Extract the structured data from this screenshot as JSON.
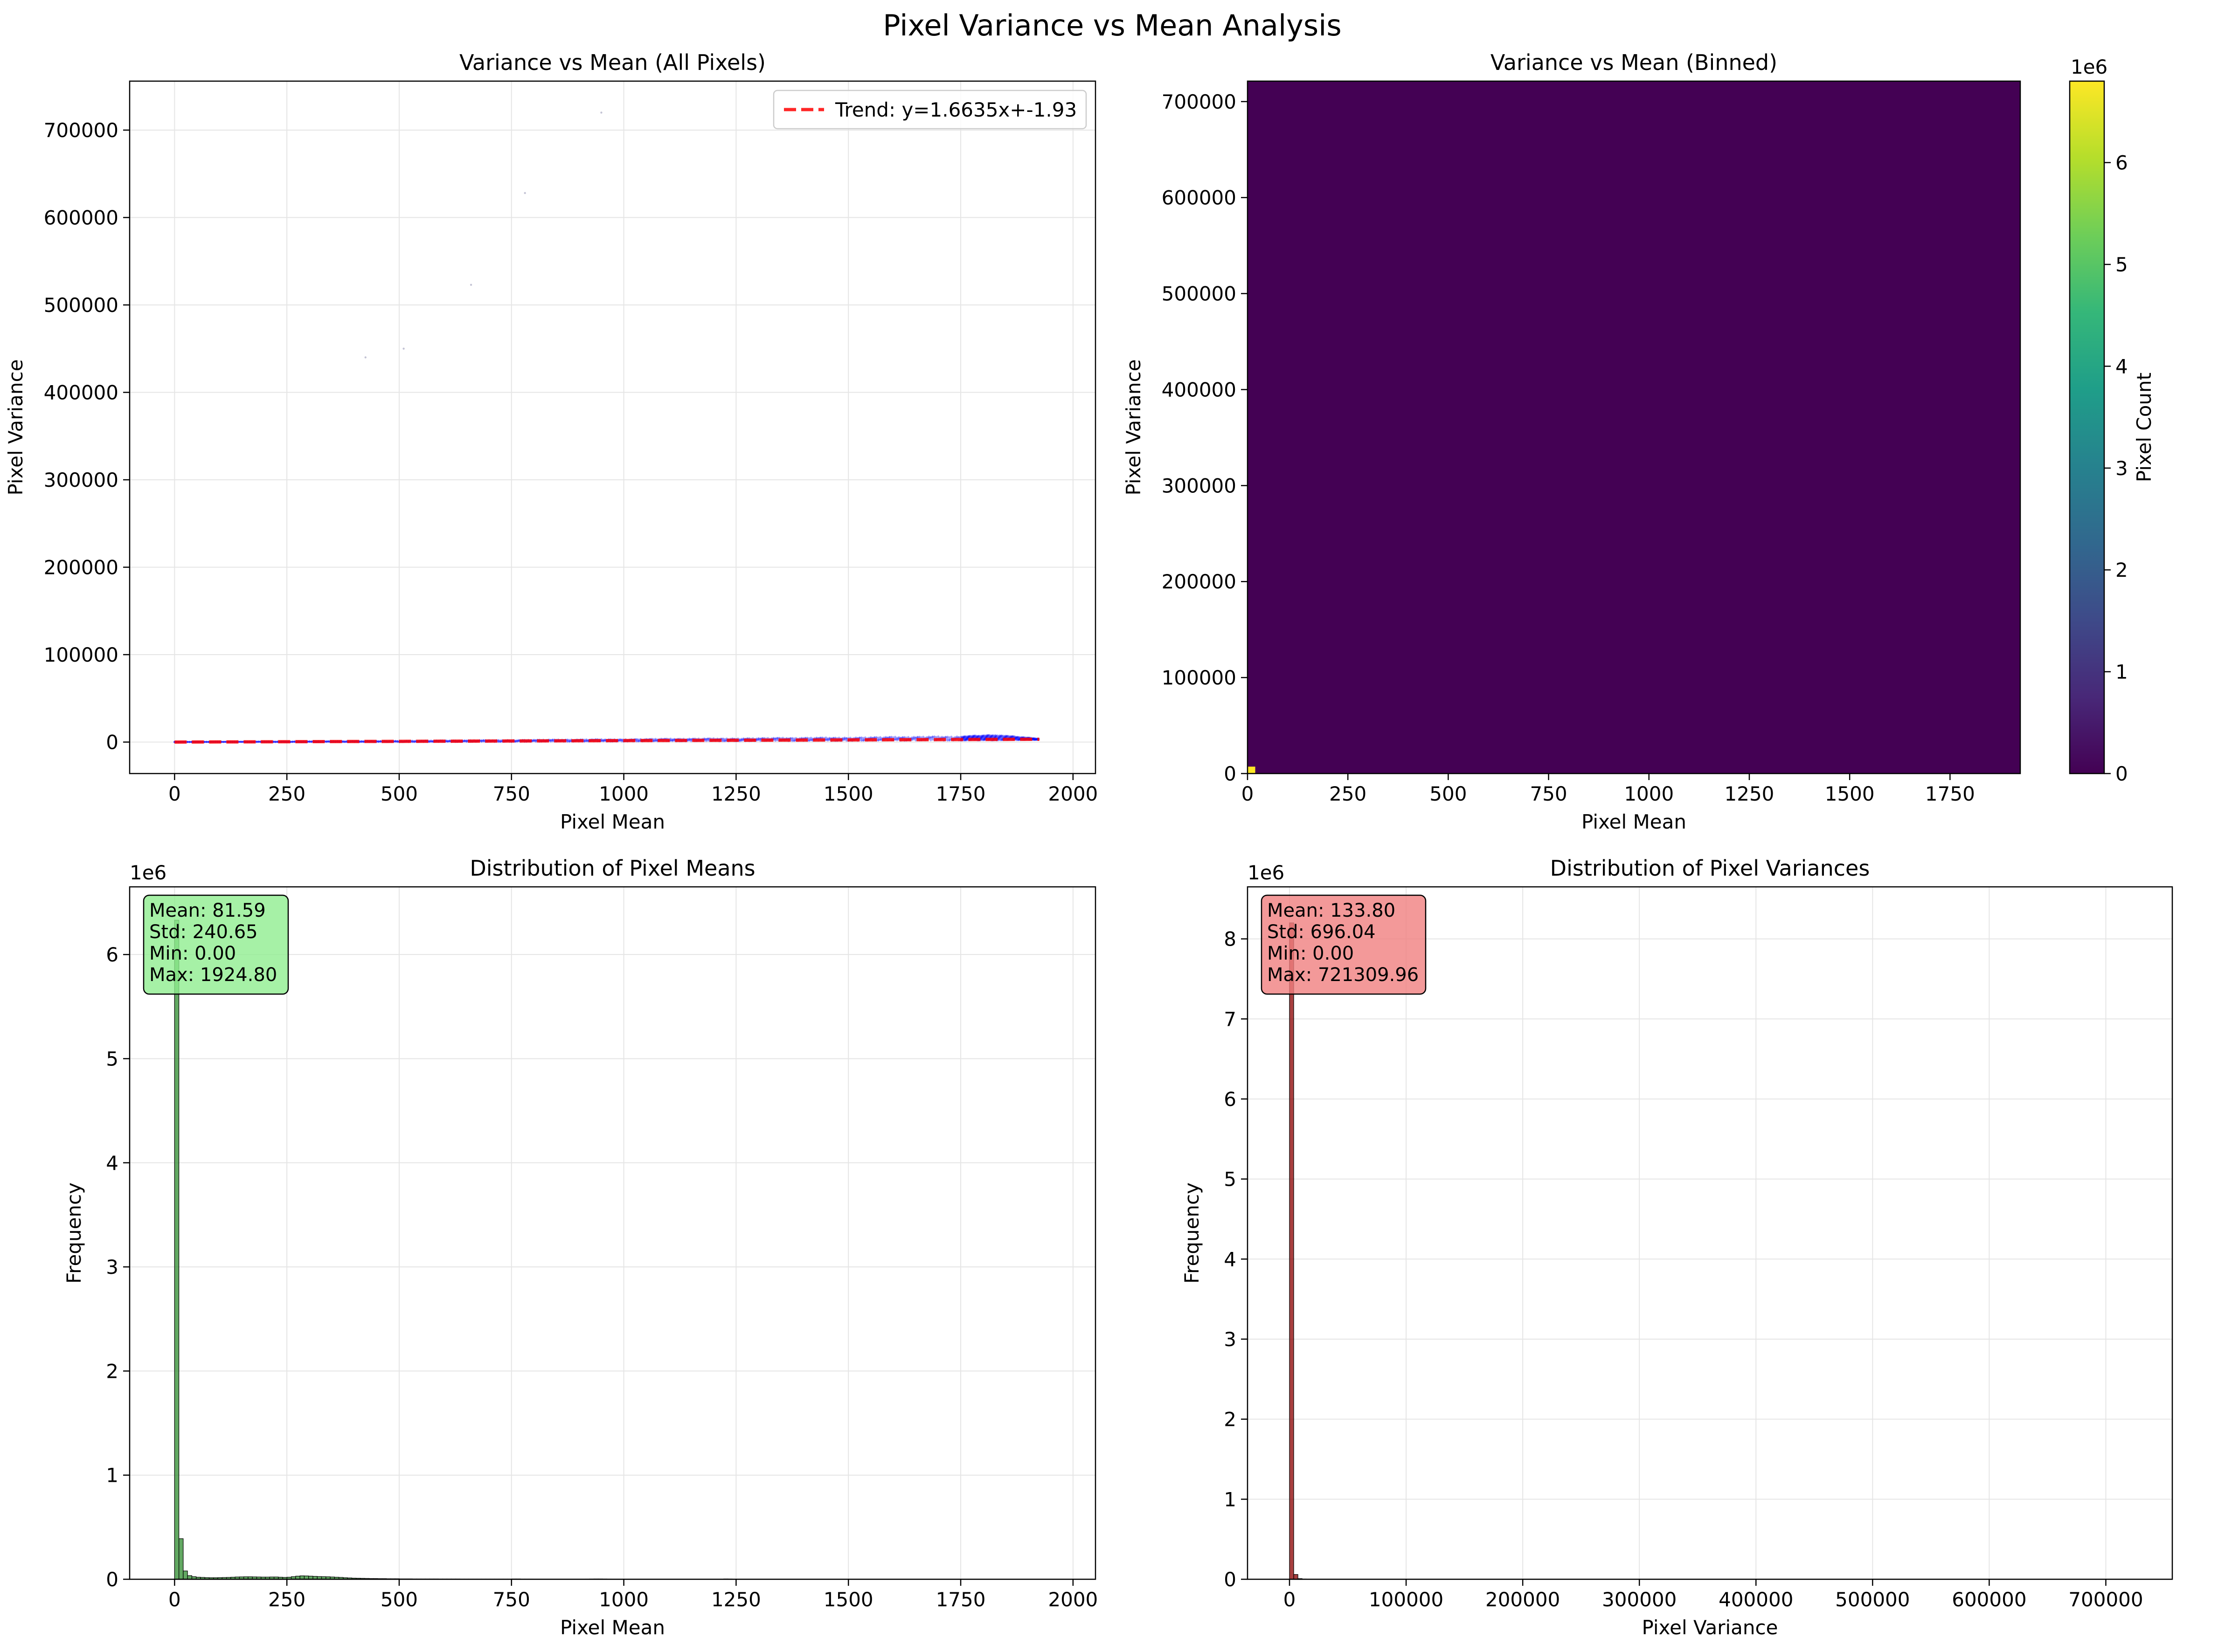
{
  "figure": {
    "title": "Pixel Variance vs Mean Analysis"
  },
  "colors": {
    "scatter": "#0000ff",
    "trend": "#ff0000",
    "hist_means_bar": "#2e8b2e",
    "hist_means_box": "#90ee90",
    "hist_var_bar": "#8b0000",
    "hist_var_box": "#f08080",
    "viridis_low": "#440154",
    "viridis_high": "#fde725",
    "grid": "#e5e5e5"
  },
  "chart_data": [
    {
      "id": "scatter",
      "type": "scatter",
      "title": "Variance vs Mean (All Pixels)",
      "xlabel": "Pixel Mean",
      "ylabel": "Pixel Variance",
      "xlim": [
        -100,
        2050
      ],
      "ylim": [
        -36000,
        756000
      ],
      "xticks": [
        0,
        250,
        500,
        750,
        1000,
        1250,
        1500,
        1750,
        2000
      ],
      "yticks": [
        0,
        100000,
        200000,
        300000,
        400000,
        500000,
        600000,
        700000
      ],
      "grid": true,
      "legend": {
        "placement": "top-right",
        "entries": [
          "Trend: y=1.6635x+-1.93"
        ]
      },
      "trend": {
        "slope": 1.6635,
        "intercept": -1.93,
        "x_range": [
          0,
          1925
        ]
      },
      "scatter_band": [
        {
          "x": 0,
          "ylo": 0,
          "yhi": 200
        },
        {
          "x": 250,
          "ylo": 0,
          "yhi": 700
        },
        {
          "x": 500,
          "ylo": 0,
          "yhi": 1500
        },
        {
          "x": 750,
          "ylo": 200,
          "yhi": 2500
        },
        {
          "x": 1000,
          "ylo": 600,
          "yhi": 3500
        },
        {
          "x": 1250,
          "ylo": 1000,
          "yhi": 4500
        },
        {
          "x": 1500,
          "ylo": 1400,
          "yhi": 5500
        },
        {
          "x": 1750,
          "ylo": 1800,
          "yhi": 6800
        },
        {
          "x": 1830,
          "ylo": 2000,
          "yhi": 8500
        },
        {
          "x": 1925,
          "ylo": 2500,
          "yhi": 4000
        }
      ],
      "outliers": [
        {
          "x": 425,
          "y": 440000
        },
        {
          "x": 510,
          "y": 450000
        },
        {
          "x": 660,
          "y": 523000
        },
        {
          "x": 780,
          "y": 628000
        },
        {
          "x": 950,
          "y": 720000
        }
      ]
    },
    {
      "id": "hist2d",
      "type": "heatmap",
      "title": "Variance vs Mean (Binned)",
      "xlabel": "Pixel Mean",
      "ylabel": "Pixel Variance",
      "xlim": [
        0,
        1925
      ],
      "ylim": [
        0,
        721310
      ],
      "xticks": [
        0,
        250,
        500,
        750,
        1000,
        1250,
        1500,
        1750
      ],
      "yticks": [
        0,
        100000,
        200000,
        300000,
        400000,
        500000,
        600000,
        700000
      ],
      "grid": false,
      "hot_cell": {
        "x0": 0,
        "x1": 19.25,
        "y0": 0,
        "y1": 7213,
        "count": 6800000
      },
      "colorbar": {
        "label": "Pixel Count",
        "min": 0,
        "max": 6800000,
        "ticks": [
          0,
          1,
          2,
          3,
          4,
          5,
          6
        ],
        "multiplier": "1e6"
      }
    },
    {
      "id": "hist_means",
      "type": "bar",
      "title": "Distribution of Pixel Means",
      "xlabel": "Pixel Mean",
      "ylabel": "Frequency",
      "xlim": [
        -100,
        2050
      ],
      "ylim": [
        0,
        6650000
      ],
      "xticks": [
        0,
        250,
        500,
        750,
        1000,
        1250,
        1500,
        1750,
        2000
      ],
      "yticks": [
        0,
        1,
        2,
        3,
        4,
        5,
        6
      ],
      "y_multiplier": "1e6",
      "grid": true,
      "bin_width": 9.624,
      "bins": [
        {
          "x": 0,
          "y": 6330000
        },
        {
          "x": 9.6,
          "y": 390000
        },
        {
          "x": 19.2,
          "y": 80000
        },
        {
          "x": 28.9,
          "y": 35000
        },
        {
          "x": 38.5,
          "y": 25000
        },
        {
          "x": 48.1,
          "y": 20000
        },
        {
          "x": 57.7,
          "y": 18000
        },
        {
          "x": 67.4,
          "y": 16000
        },
        {
          "x": 77.0,
          "y": 15000
        },
        {
          "x": 86.6,
          "y": 15000
        },
        {
          "x": 96.2,
          "y": 16000
        },
        {
          "x": 105.9,
          "y": 17000
        },
        {
          "x": 115.5,
          "y": 18000
        },
        {
          "x": 125.1,
          "y": 20000
        },
        {
          "x": 134.7,
          "y": 22000
        },
        {
          "x": 144.4,
          "y": 23000
        },
        {
          "x": 154.0,
          "y": 24000
        },
        {
          "x": 163.6,
          "y": 24000
        },
        {
          "x": 173.2,
          "y": 23000
        },
        {
          "x": 182.9,
          "y": 22000
        },
        {
          "x": 192.5,
          "y": 21000
        },
        {
          "x": 202.1,
          "y": 21000
        },
        {
          "x": 211.7,
          "y": 22000
        },
        {
          "x": 221.4,
          "y": 22000
        },
        {
          "x": 231.0,
          "y": 20000
        },
        {
          "x": 240.6,
          "y": 18000
        },
        {
          "x": 250.2,
          "y": 20000
        },
        {
          "x": 259.8,
          "y": 25000
        },
        {
          "x": 269.5,
          "y": 30000
        },
        {
          "x": 279.1,
          "y": 33000
        },
        {
          "x": 288.7,
          "y": 32000
        },
        {
          "x": 298.3,
          "y": 30000
        },
        {
          "x": 308.0,
          "y": 28000
        },
        {
          "x": 317.6,
          "y": 26000
        },
        {
          "x": 327.2,
          "y": 25000
        },
        {
          "x": 336.8,
          "y": 24000
        },
        {
          "x": 346.5,
          "y": 22000
        },
        {
          "x": 356.1,
          "y": 20000
        },
        {
          "x": 365.7,
          "y": 18000
        },
        {
          "x": 375.3,
          "y": 15000
        },
        {
          "x": 385.0,
          "y": 13000
        },
        {
          "x": 394.6,
          "y": 11000
        },
        {
          "x": 404.2,
          "y": 10000
        },
        {
          "x": 413.8,
          "y": 9000
        },
        {
          "x": 423.5,
          "y": 8000
        },
        {
          "x": 433.1,
          "y": 7000
        },
        {
          "x": 442.7,
          "y": 7000
        },
        {
          "x": 452.3,
          "y": 6000
        },
        {
          "x": 462.0,
          "y": 6000
        },
        {
          "x": 471.6,
          "y": 5000
        },
        {
          "x": 481.2,
          "y": 5000
        },
        {
          "x": 490.8,
          "y": 5000
        },
        {
          "x": 500.4,
          "y": 4000
        },
        {
          "x": 510.1,
          "y": 4000
        },
        {
          "x": 519.7,
          "y": 4000
        },
        {
          "x": 529.3,
          "y": 3000
        },
        {
          "x": 538.9,
          "y": 3000
        },
        {
          "x": 548.6,
          "y": 3000
        },
        {
          "x": 558.2,
          "y": 3000
        },
        {
          "x": 567.8,
          "y": 3000
        },
        {
          "x": 577.4,
          "y": 3000
        },
        {
          "x": 587.1,
          "y": 2500
        },
        {
          "x": 596.7,
          "y": 2500
        },
        {
          "x": 606.3,
          "y": 2500
        },
        {
          "x": 615.9,
          "y": 2500
        },
        {
          "x": 625.6,
          "y": 2500
        },
        {
          "x": 635.2,
          "y": 2000
        },
        {
          "x": 644.8,
          "y": 2000
        },
        {
          "x": 654.4,
          "y": 2000
        },
        {
          "x": 664.1,
          "y": 2000
        },
        {
          "x": 673.7,
          "y": 2000
        },
        {
          "x": 683.3,
          "y": 2000
        },
        {
          "x": 692.9,
          "y": 2000
        },
        {
          "x": 702.6,
          "y": 2000
        },
        {
          "x": 712.2,
          "y": 2000
        },
        {
          "x": 721.8,
          "y": 2000
        },
        {
          "x": 731.4,
          "y": 2000
        },
        {
          "x": 741.0,
          "y": 2000
        },
        {
          "x": 750.7,
          "y": 3000
        },
        {
          "x": 760.3,
          "y": 3000
        },
        {
          "x": 769.9,
          "y": 2000
        },
        {
          "x": 779.5,
          "y": 2000
        },
        {
          "x": 789.2,
          "y": 2000
        },
        {
          "x": 798.8,
          "y": 1500
        },
        {
          "x": 808.4,
          "y": 1500
        },
        {
          "x": 818.0,
          "y": 1500
        },
        {
          "x": 827.7,
          "y": 1500
        },
        {
          "x": 837.3,
          "y": 1500
        },
        {
          "x": 846.9,
          "y": 1500
        },
        {
          "x": 856.5,
          "y": 1500
        },
        {
          "x": 866.2,
          "y": 1500
        },
        {
          "x": 875.8,
          "y": 1500
        },
        {
          "x": 885.4,
          "y": 1500
        },
        {
          "x": 895.0,
          "y": 1500
        },
        {
          "x": 904.7,
          "y": 1500
        },
        {
          "x": 914.3,
          "y": 2000
        },
        {
          "x": 923.9,
          "y": 2500
        },
        {
          "x": 933.5,
          "y": 3000
        },
        {
          "x": 943.1,
          "y": 3000
        },
        {
          "x": 952.8,
          "y": 2500
        },
        {
          "x": 962.4,
          "y": 2000
        },
        {
          "x": 972.0,
          "y": 1500
        },
        {
          "x": 981.6,
          "y": 1200
        },
        {
          "x": 991.3,
          "y": 1200
        },
        {
          "x": 1000.9,
          "y": 1200
        },
        {
          "x": 1039.4,
          "y": 1000
        },
        {
          "x": 1078.0,
          "y": 1000
        },
        {
          "x": 1116.5,
          "y": 1000
        },
        {
          "x": 1155.0,
          "y": 1000
        },
        {
          "x": 1193.4,
          "y": 1500
        },
        {
          "x": 1222.3,
          "y": 3000
        },
        {
          "x": 1231.9,
          "y": 2500
        },
        {
          "x": 1270.5,
          "y": 1000
        },
        {
          "x": 1309.0,
          "y": 1000
        },
        {
          "x": 1347.4,
          "y": 1000
        },
        {
          "x": 1386.0,
          "y": 1000
        },
        {
          "x": 1424.4,
          "y": 1000
        },
        {
          "x": 1463.0,
          "y": 1000
        },
        {
          "x": 1501.4,
          "y": 1000
        },
        {
          "x": 1540.0,
          "y": 1000
        },
        {
          "x": 1578.4,
          "y": 1000
        },
        {
          "x": 1617.0,
          "y": 1000
        },
        {
          "x": 1655.4,
          "y": 1000
        },
        {
          "x": 1694.0,
          "y": 1000
        },
        {
          "x": 1732.4,
          "y": 1000
        },
        {
          "x": 1771.0,
          "y": 1000
        },
        {
          "x": 1809.4,
          "y": 1000
        },
        {
          "x": 1848.0,
          "y": 1000
        },
        {
          "x": 1886.4,
          "y": 1000
        },
        {
          "x": 1915.2,
          "y": 500
        }
      ],
      "stats": [
        "Mean: 81.59",
        "Std: 240.65",
        "Min: 0.00",
        "Max: 1924.80"
      ]
    },
    {
      "id": "hist_var",
      "type": "bar",
      "title": "Distribution of Pixel Variances",
      "xlabel": "Pixel Variance",
      "ylabel": "Frequency",
      "xlim": [
        -36000,
        757000
      ],
      "ylim": [
        0,
        8650000
      ],
      "xticks": [
        0,
        100000,
        200000,
        300000,
        400000,
        500000,
        600000,
        700000
      ],
      "yticks": [
        0,
        1,
        2,
        3,
        4,
        5,
        6,
        7,
        8
      ],
      "y_multiplier": "1e6",
      "grid": true,
      "bin_width": 3606.5,
      "bins": [
        {
          "x": 0,
          "y": 8200000
        },
        {
          "x": 3606.5,
          "y": 60000
        },
        {
          "x": 7213,
          "y": 8000
        },
        {
          "x": 10819.5,
          "y": 3000
        },
        {
          "x": 14426,
          "y": 1500
        }
      ],
      "stats": [
        "Mean: 133.80",
        "Std: 696.04",
        "Min: 0.00",
        "Max: 721309.96"
      ]
    }
  ]
}
